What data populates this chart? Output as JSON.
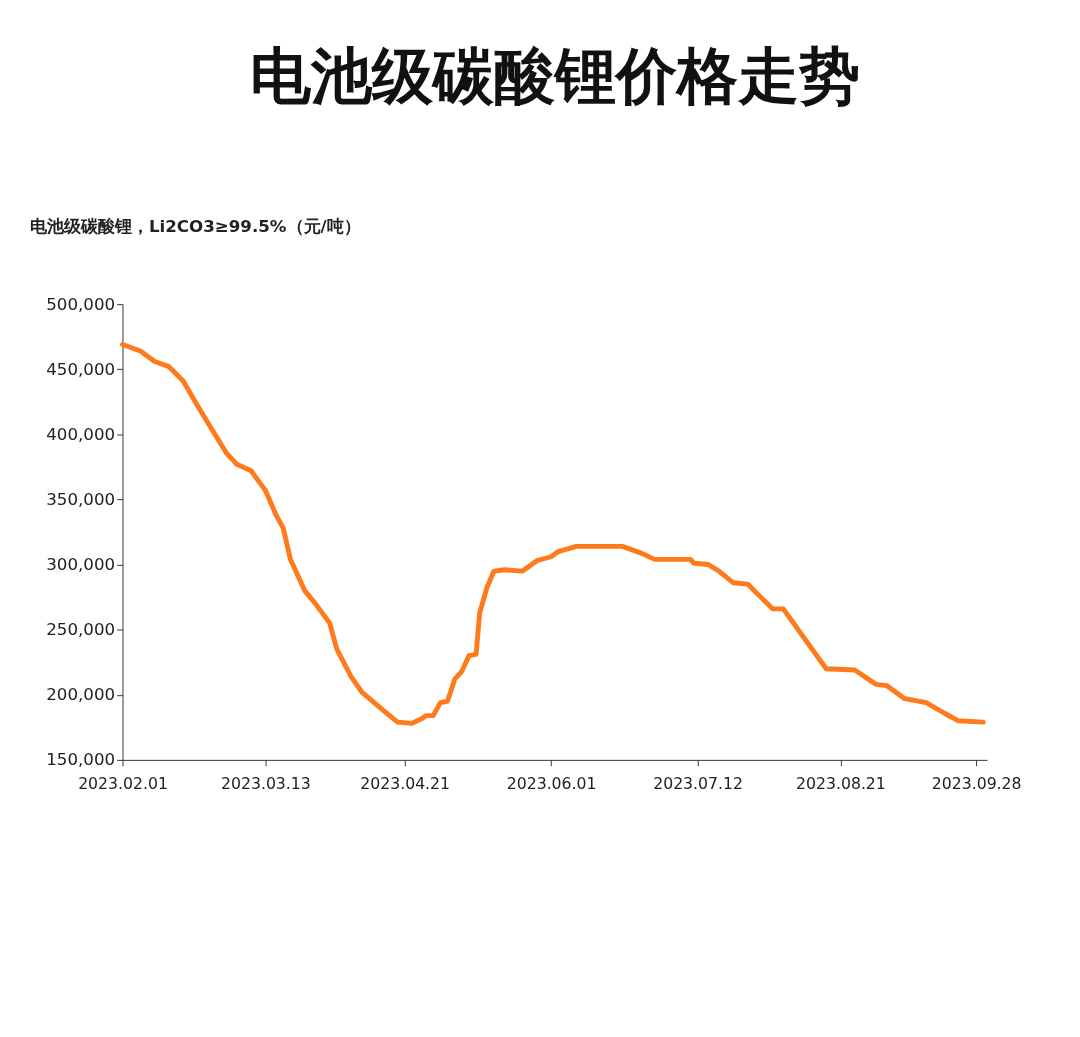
{
  "chart_data": {
    "type": "line",
    "title": "电池级碳酸锂价格走势",
    "ylabel": "电池级碳酸锂，Li2CO3≥99.5%（元/吨）",
    "x": [
      "2023-02-01",
      "2023-02-06",
      "2023-02-10",
      "2023-02-14",
      "2023-02-18",
      "2023-02-22",
      "2023-02-26",
      "2023-03-02",
      "2023-03-05",
      "2023-03-09",
      "2023-03-13",
      "2023-03-16",
      "2023-03-18",
      "2023-03-20",
      "2023-03-24",
      "2023-03-27",
      "2023-03-31",
      "2023-04-02",
      "2023-04-06",
      "2023-04-09",
      "2023-04-15",
      "2023-04-19",
      "2023-04-23",
      "2023-04-26",
      "2023-04-27",
      "2023-04-29",
      "2023-05-01",
      "2023-05-03",
      "2023-05-05",
      "2023-05-07",
      "2023-05-09",
      "2023-05-11",
      "2023-05-12",
      "2023-05-14",
      "2023-05-16",
      "2023-05-19",
      "2023-05-24",
      "2023-05-28",
      "2023-06-01",
      "2023-06-03",
      "2023-06-08",
      "2023-06-21",
      "2023-06-26",
      "2023-06-30",
      "2023-07-10",
      "2023-07-11",
      "2023-07-15",
      "2023-07-18",
      "2023-07-22",
      "2023-07-26",
      "2023-08-02",
      "2023-08-05",
      "2023-08-17",
      "2023-08-25",
      "2023-08-31",
      "2023-09-03",
      "2023-09-08",
      "2023-09-14",
      "2023-09-19",
      "2023-09-23",
      "2023-09-30"
    ],
    "values": [
      469000,
      464000,
      456000,
      452000,
      441000,
      422000,
      404000,
      386000,
      377000,
      372000,
      357000,
      338000,
      328000,
      304000,
      280000,
      270000,
      255000,
      235000,
      214000,
      202000,
      188000,
      179000,
      178000,
      182000,
      184000,
      184000,
      194000,
      195000,
      212000,
      218000,
      230000,
      231000,
      263000,
      282000,
      295000,
      296000,
      295000,
      303000,
      306000,
      310000,
      314000,
      314000,
      309000,
      304000,
      304000,
      301000,
      300000,
      295000,
      286000,
      285000,
      266000,
      266000,
      220000,
      219000,
      208000,
      207000,
      197000,
      194000,
      186000,
      180000,
      179000
    ],
    "color": "#ff7a1a",
    "xlim": [
      "2023-02-01",
      "2023-10-01"
    ],
    "xticks": [
      {
        "value": "2023-02-01",
        "label": "2023.02.01"
      },
      {
        "value": "2023-03-13",
        "label": "2023.03.13"
      },
      {
        "value": "2023-04-21",
        "label": "2023.04.21"
      },
      {
        "value": "2023-06-01",
        "label": "2023.06.01"
      },
      {
        "value": "2023-07-12",
        "label": "2023.07.12"
      },
      {
        "value": "2023-08-21",
        "label": "2023.08.21"
      },
      {
        "value": "2023-09-28",
        "label": "2023.09.28"
      }
    ],
    "ylim": [
      150000,
      500000
    ],
    "yticks": [
      {
        "value": 150000,
        "label": "150,000"
      },
      {
        "value": 200000,
        "label": "200,000"
      },
      {
        "value": 250000,
        "label": "250,000"
      },
      {
        "value": 300000,
        "label": "300,000"
      },
      {
        "value": 350000,
        "label": "350,000"
      },
      {
        "value": 400000,
        "label": "400,000"
      },
      {
        "value": 450000,
        "label": "450,000"
      },
      {
        "value": 500000,
        "label": "500,000"
      }
    ],
    "grid": false
  }
}
